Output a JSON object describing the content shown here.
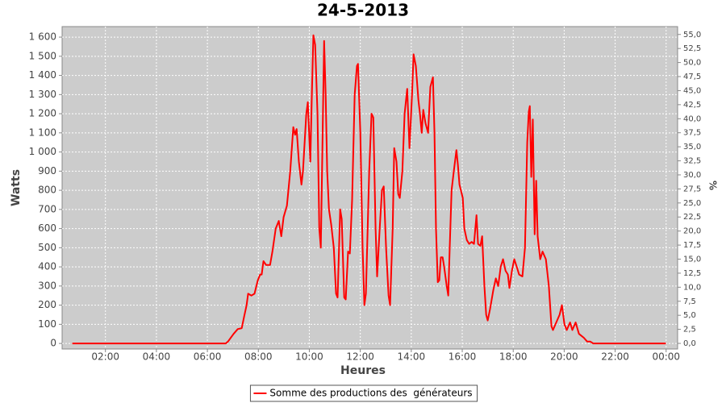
{
  "chart_data": {
    "type": "line",
    "title": "24-5-2013",
    "x_label": "Heures",
    "y_label": "Watts",
    "y2_label": "%",
    "xlim": [
      0.3,
      24.45
    ],
    "ylim": [
      -29,
      1655
    ],
    "y2lim": [
      -1.0,
      56.4
    ],
    "xticks": [
      {
        "value": 2,
        "label": "02:00"
      },
      {
        "value": 4,
        "label": "04:00"
      },
      {
        "value": 6,
        "label": "06:00"
      },
      {
        "value": 8,
        "label": "08:00"
      },
      {
        "value": 10,
        "label": "10:00"
      },
      {
        "value": 12,
        "label": "12:00"
      },
      {
        "value": 14,
        "label": "14:00"
      },
      {
        "value": 16,
        "label": "16:00"
      },
      {
        "value": 18,
        "label": "18:00"
      },
      {
        "value": 20,
        "label": "20:00"
      },
      {
        "value": 22,
        "label": "22:00"
      },
      {
        "value": 24,
        "label": "00:00"
      }
    ],
    "yticks": [
      0,
      100,
      200,
      300,
      400,
      500,
      600,
      700,
      800,
      900,
      {
        "value": 1000,
        "label": "1 000"
      },
      {
        "value": 1100,
        "label": "1 100"
      },
      {
        "value": 1200,
        "label": "1 200"
      },
      {
        "value": 1300,
        "label": "1 300"
      },
      {
        "value": 1400,
        "label": "1 400"
      },
      {
        "value": 1500,
        "label": "1 500"
      },
      {
        "value": 1600,
        "label": "1 600"
      }
    ],
    "y2ticks": [
      {
        "value": 0,
        "label": "0,0"
      },
      {
        "value": 2.5,
        "label": "2,5"
      },
      {
        "value": 5,
        "label": "5,0"
      },
      {
        "value": 7.5,
        "label": "7,5"
      },
      {
        "value": 10,
        "label": "10,0"
      },
      {
        "value": 12.5,
        "label": "12,5"
      },
      {
        "value": 15,
        "label": "15,0"
      },
      {
        "value": 17.5,
        "label": "17,5"
      },
      {
        "value": 20,
        "label": "20,0"
      },
      {
        "value": 22.5,
        "label": "22,5"
      },
      {
        "value": 25,
        "label": "25,0"
      },
      {
        "value": 27.5,
        "label": "27,5"
      },
      {
        "value": 30,
        "label": "30,0"
      },
      {
        "value": 32.5,
        "label": "32,5"
      },
      {
        "value": 35,
        "label": "35,0"
      },
      {
        "value": 37.5,
        "label": "37,5"
      },
      {
        "value": 40,
        "label": "40,0"
      },
      {
        "value": 42.5,
        "label": "42,5"
      },
      {
        "value": 45,
        "label": "45,0"
      },
      {
        "value": 47.5,
        "label": "47,5"
      },
      {
        "value": 50,
        "label": "50,0"
      },
      {
        "value": 52.5,
        "label": "52,5"
      },
      {
        "value": 55,
        "label": "55,0"
      }
    ],
    "grid": true,
    "legend": "bottom",
    "x": [
      0.7,
      6.72,
      6.81,
      7.03,
      7.19,
      7.35,
      7.44,
      7.54,
      7.6,
      7.73,
      7.85,
      7.98,
      8.07,
      8.13,
      8.2,
      8.3,
      8.46,
      8.55,
      8.68,
      8.8,
      8.9,
      8.99,
      9.12,
      9.25,
      9.37,
      9.44,
      9.5,
      9.59,
      9.69,
      9.75,
      9.88,
      9.94,
      10.04,
      10.1,
      10.16,
      10.23,
      10.32,
      10.39,
      10.45,
      10.51,
      10.58,
      10.64,
      10.7,
      10.77,
      10.86,
      10.96,
      11.05,
      11.11,
      11.21,
      11.27,
      11.37,
      11.43,
      11.52,
      11.59,
      11.68,
      11.78,
      11.87,
      11.91,
      12.0,
      12.09,
      12.16,
      12.22,
      12.35,
      12.44,
      12.51,
      12.6,
      12.66,
      12.76,
      12.85,
      12.92,
      13.01,
      13.11,
      13.17,
      13.27,
      13.33,
      13.42,
      13.49,
      13.55,
      13.65,
      13.74,
      13.84,
      13.93,
      14.03,
      14.09,
      14.18,
      14.28,
      14.34,
      14.41,
      14.47,
      14.56,
      14.66,
      14.75,
      14.85,
      14.91,
      14.97,
      15.04,
      15.1,
      15.16,
      15.23,
      15.29,
      15.39,
      15.45,
      15.51,
      15.58,
      15.67,
      15.77,
      15.83,
      15.89,
      16.02,
      16.08,
      16.18,
      16.27,
      16.37,
      16.46,
      16.56,
      16.62,
      16.71,
      16.78,
      16.87,
      16.94,
      17.0,
      17.09,
      17.22,
      17.32,
      17.41,
      17.51,
      17.6,
      17.7,
      17.79,
      17.85,
      17.95,
      18.04,
      18.14,
      18.23,
      18.36,
      18.46,
      18.55,
      18.61,
      18.65,
      18.71,
      18.77,
      18.84,
      18.9,
      18.96,
      19.06,
      19.15,
      19.28,
      19.4,
      19.5,
      19.56,
      19.69,
      19.82,
      19.91,
      20.01,
      20.1,
      20.23,
      20.32,
      20.45,
      20.58,
      20.77,
      20.9,
      21.02,
      21.14,
      23.99
    ],
    "series": [
      {
        "name": "Somme des productions des  générateurs",
        "color": "#ff0000",
        "values": [
          0,
          0,
          10,
          50,
          75,
          80,
          140,
          200,
          260,
          250,
          260,
          330,
          360,
          360,
          430,
          410,
          410,
          480,
          600,
          640,
          560,
          660,
          720,
          900,
          1130,
          1090,
          1120,
          950,
          830,
          900,
          1200,
          1260,
          950,
          1300,
          1610,
          1560,
          1200,
          600,
          500,
          1000,
          1580,
          1300,
          900,
          700,
          620,
          500,
          260,
          240,
          700,
          650,
          240,
          230,
          480,
          470,
          750,
          1300,
          1450,
          1460,
          1100,
          500,
          200,
          260,
          900,
          1200,
          1180,
          600,
          350,
          600,
          800,
          820,
          500,
          250,
          200,
          600,
          1020,
          950,
          780,
          760,
          900,
          1200,
          1330,
          1020,
          1300,
          1510,
          1450,
          1270,
          1200,
          1100,
          1220,
          1150,
          1100,
          1340,
          1390,
          1100,
          600,
          320,
          330,
          450,
          450,
          400,
          300,
          250,
          500,
          800,
          900,
          1010,
          930,
          830,
          760,
          600,
          540,
          520,
          530,
          520,
          670,
          520,
          510,
          560,
          300,
          150,
          120,
          180,
          280,
          340,
          300,
          400,
          440,
          380,
          360,
          290,
          380,
          440,
          400,
          360,
          350,
          500,
          1050,
          1210,
          1240,
          870,
          1170,
          570,
          850,
          560,
          440,
          480,
          440,
          300,
          90,
          70,
          110,
          150,
          200,
          100,
          70,
          110,
          70,
          110,
          50,
          30,
          10,
          10,
          0,
          0
        ]
      }
    ]
  }
}
